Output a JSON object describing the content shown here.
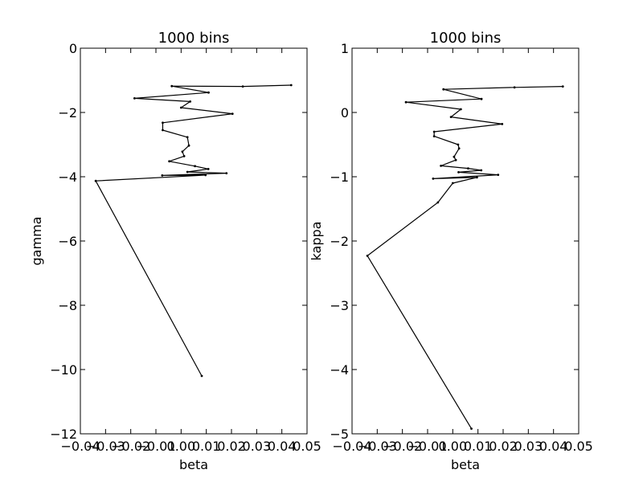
{
  "chart_data": [
    {
      "type": "line",
      "title": "1000 bins",
      "xlabel": "beta",
      "ylabel": "gamma",
      "xlim": [
        -0.04,
        0.05
      ],
      "ylim": [
        -12,
        0
      ],
      "xticks": [
        -0.04,
        -0.03,
        -0.02,
        -0.01,
        0.0,
        0.01,
        0.02,
        0.03,
        0.04,
        0.05
      ],
      "xtick_labels": [
        "−0.04",
        "−0.03",
        "−0.02",
        "−0.01",
        "0.00",
        "0.01",
        "0.02",
        "0.03",
        "0.04",
        "0.05"
      ],
      "yticks": [
        0,
        -2,
        -4,
        -6,
        -8,
        -10,
        -12
      ],
      "ytick_labels": [
        "0",
        "−2",
        "−4",
        "−6",
        "−8",
        "−10",
        "−12"
      ],
      "grid": false,
      "series": [
        {
          "color": "#000000",
          "marker": "dot",
          "points": [
            [
              0.0437,
              -1.15
            ],
            [
              0.0245,
              -1.19
            ],
            [
              -0.0037,
              -1.18
            ],
            [
              0.0109,
              -1.38
            ],
            [
              -0.0185,
              -1.56
            ],
            [
              0.0036,
              -1.66
            ],
            [
              0.0,
              -1.85
            ],
            [
              0.0204,
              -2.04
            ],
            [
              -0.0073,
              -2.32
            ],
            [
              -0.0073,
              -2.55
            ],
            [
              0.0025,
              -2.77
            ],
            [
              0.0031,
              -3.03
            ],
            [
              0.0005,
              -3.22
            ],
            [
              0.0012,
              -3.36
            ],
            [
              -0.0047,
              -3.52
            ],
            [
              0.0055,
              -3.67
            ],
            [
              0.0108,
              -3.76
            ],
            [
              0.0025,
              -3.85
            ],
            [
              0.018,
              -3.89
            ],
            [
              -0.0075,
              -3.96
            ],
            [
              0.0097,
              -3.95
            ],
            [
              -0.0339,
              -4.13
            ],
            [
              0.0082,
              -10.2
            ]
          ]
        }
      ]
    },
    {
      "type": "line",
      "title": "1000 bins",
      "xlabel": "beta",
      "ylabel": "kappa",
      "xlim": [
        -0.04,
        0.05
      ],
      "ylim": [
        -5,
        1
      ],
      "xticks": [
        -0.04,
        -0.03,
        -0.02,
        -0.01,
        0.0,
        0.01,
        0.02,
        0.03,
        0.04,
        0.05
      ],
      "xtick_labels": [
        "−0.04",
        "−0.03",
        "−0.02",
        "−0.01",
        "0.00",
        "0.01",
        "0.02",
        "0.03",
        "0.04",
        "0.05"
      ],
      "yticks": [
        1,
        0,
        -1,
        -2,
        -3,
        -4,
        -5
      ],
      "ytick_labels": [
        "1",
        "0",
        "−1",
        "−2",
        "−3",
        "−4",
        "−5"
      ],
      "grid": false,
      "series": [
        {
          "color": "#000000",
          "marker": "dot",
          "points": [
            [
              0.0437,
              0.405
            ],
            [
              0.0245,
              0.39
            ],
            [
              -0.0037,
              0.36
            ],
            [
              0.0114,
              0.21
            ],
            [
              -0.0186,
              0.16
            ],
            [
              0.0032,
              0.05
            ],
            [
              -0.0007,
              -0.07
            ],
            [
              0.0196,
              -0.18
            ],
            [
              -0.0074,
              -0.3
            ],
            [
              -0.0074,
              -0.37
            ],
            [
              0.0021,
              -0.5
            ],
            [
              0.0025,
              -0.56
            ],
            [
              0.0005,
              -0.69
            ],
            [
              0.0012,
              -0.74
            ],
            [
              -0.0047,
              -0.83
            ],
            [
              0.0061,
              -0.87
            ],
            [
              0.0113,
              -0.9
            ],
            [
              0.0023,
              -0.93
            ],
            [
              0.018,
              -0.97
            ],
            [
              -0.0078,
              -1.03
            ],
            [
              0.0096,
              -1.01
            ],
            [
              0.0,
              -1.1
            ],
            [
              -0.0059,
              -1.4
            ],
            [
              -0.0339,
              -2.23
            ],
            [
              0.0074,
              -4.92
            ]
          ]
        }
      ]
    }
  ]
}
